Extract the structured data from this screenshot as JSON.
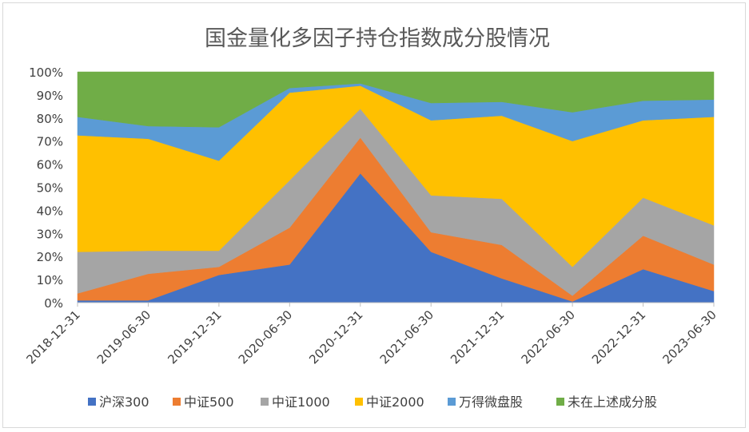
{
  "chart_data": {
    "type": "area",
    "stacked": "percent",
    "title": "国金量化多因子持仓指数成分股情况",
    "categories": [
      "2018-12-31",
      "2019-06-30",
      "2019-12-31",
      "2020-06-30",
      "2020-12-31",
      "2021-06-30",
      "2021-12-31",
      "2022-06-30",
      "2022-12-31",
      "2023-06-30"
    ],
    "y_ticks": [
      "0%",
      "10%",
      "20%",
      "30%",
      "40%",
      "50%",
      "60%",
      "70%",
      "80%",
      "90%",
      "100%"
    ],
    "ylim": [
      0,
      100
    ],
    "grid": false,
    "legend_position": "bottom",
    "series": [
      {
        "name": "沪深300",
        "color": "#4472c4",
        "values": [
          1,
          1,
          12,
          16.5,
          56,
          22,
          10.5,
          0.5,
          14.5,
          5
        ]
      },
      {
        "name": "中证500",
        "color": "#ed7d31",
        "values": [
          3,
          11.5,
          3.5,
          16,
          15.5,
          8.5,
          14.5,
          2.5,
          14.5,
          11.5
        ]
      },
      {
        "name": "中证1000",
        "color": "#a5a5a5",
        "values": [
          18,
          10,
          7,
          20.5,
          12.5,
          16,
          20,
          12.5,
          16.5,
          17
        ]
      },
      {
        "name": "中证2000",
        "color": "#ffc000",
        "values": [
          50.5,
          48.5,
          39,
          38,
          10,
          32.5,
          36,
          54.5,
          33.5,
          47
        ]
      },
      {
        "name": "万得微盘股",
        "color": "#5b9bd5",
        "values": [
          8,
          5.5,
          14.5,
          2,
          1,
          7.5,
          6,
          12.5,
          8.5,
          7.5
        ]
      },
      {
        "name": "未在上述成分股",
        "color": "#70ad47",
        "values": [
          19.5,
          23.5,
          24,
          7,
          5,
          13.5,
          13,
          17.5,
          12.5,
          12
        ]
      }
    ]
  }
}
